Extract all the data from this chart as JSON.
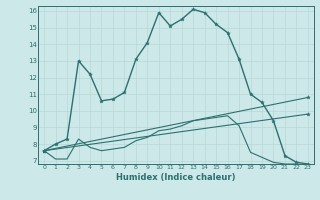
{
  "xlabel": "Humidex (Indice chaleur)",
  "background_color": "#cce8e8",
  "grid_color": "#b8d8d8",
  "line_color": "#2d7070",
  "xlim": [
    -0.5,
    23.5
  ],
  "ylim": [
    6.8,
    16.3
  ],
  "yticks": [
    7,
    8,
    9,
    10,
    11,
    12,
    13,
    14,
    15,
    16
  ],
  "xticks": [
    0,
    1,
    2,
    3,
    4,
    5,
    6,
    7,
    8,
    9,
    10,
    11,
    12,
    13,
    14,
    15,
    16,
    17,
    18,
    19,
    20,
    21,
    22,
    23
  ],
  "series": [
    {
      "x": [
        0,
        1,
        2,
        3,
        4,
        5,
        6,
        7,
        8,
        9,
        10,
        11,
        12,
        13,
        14,
        15,
        16,
        17,
        18,
        19,
        20,
        21,
        22,
        23
      ],
      "y": [
        7.6,
        8.0,
        8.3,
        13.0,
        12.2,
        10.6,
        10.7,
        11.1,
        13.1,
        14.1,
        15.9,
        15.1,
        15.5,
        16.1,
        15.9,
        15.2,
        14.7,
        13.1,
        11.0,
        10.5,
        9.4,
        7.3,
        6.9,
        6.8
      ],
      "marker": true,
      "linewidth": 1.0
    },
    {
      "x": [
        0,
        1,
        2,
        3,
        4,
        5,
        6,
        7,
        8,
        9,
        10,
        11,
        12,
        13,
        14,
        15,
        16,
        17,
        18,
        19,
        20,
        21,
        22,
        23
      ],
      "y": [
        7.6,
        7.1,
        7.1,
        8.3,
        7.8,
        7.6,
        7.7,
        7.8,
        8.2,
        8.4,
        8.8,
        8.9,
        9.1,
        9.4,
        9.5,
        9.6,
        9.7,
        9.1,
        7.5,
        7.2,
        6.9,
        6.8,
        6.8,
        6.7
      ],
      "marker": false,
      "linewidth": 0.8
    },
    {
      "x": [
        0,
        23
      ],
      "y": [
        7.6,
        10.8
      ],
      "marker": true,
      "linewidth": 0.8
    },
    {
      "x": [
        0,
        23
      ],
      "y": [
        7.6,
        9.8
      ],
      "marker": true,
      "linewidth": 0.8
    }
  ]
}
